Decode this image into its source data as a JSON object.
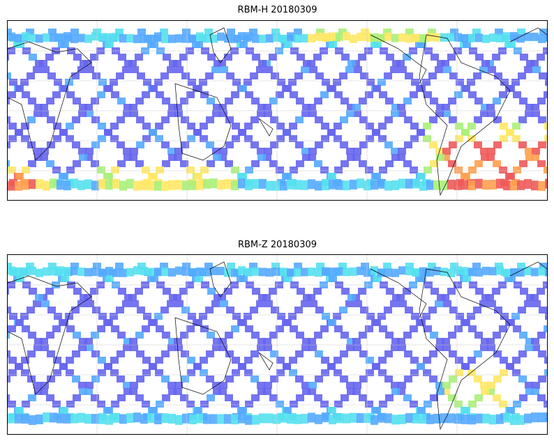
{
  "panels": [
    {
      "title": "RBM-H 20180309",
      "profile": "high"
    },
    {
      "title": "RBM-Z 20180309",
      "profile": "low"
    }
  ],
  "colors": {
    "low": "#6666ee",
    "mid_low": "#55aaff",
    "mid": "#55e0ee",
    "mid_high": "#aaf07a",
    "high_yellow": "#ffe866",
    "high_orange": "#ffa050",
    "highest": "#ee5a5a",
    "coastline": "#000000",
    "grid": "#cccccc"
  }
}
